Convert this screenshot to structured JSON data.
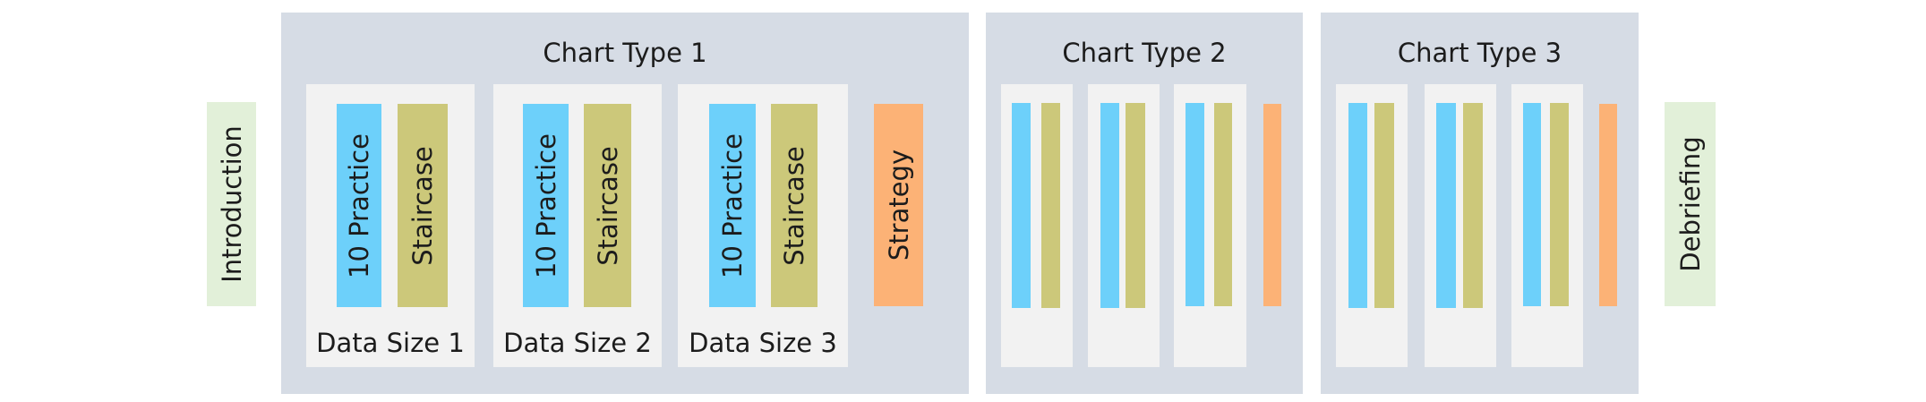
{
  "phases": {
    "introduction": "Introduction",
    "debriefing": "Debriefing"
  },
  "chart_types": [
    {
      "title": "Chart Type 1",
      "groups": [
        {
          "label": "Data Size 1",
          "practice": "10 Practice",
          "staircase": "Staircase"
        },
        {
          "label": "Data Size 2",
          "practice": "10 Practice",
          "staircase": "Staircase"
        },
        {
          "label": "Data Size 3",
          "practice": "10 Practice",
          "staircase": "Staircase"
        }
      ],
      "strategy": "Strategy"
    },
    {
      "title": "Chart Type 2"
    },
    {
      "title": "Chart Type 3"
    }
  ],
  "colors": {
    "panel": "#d6dce5",
    "group": "#f2f2f2",
    "practice": "#6dd0fa",
    "staircase": "#ccc87a",
    "strategy": "#fcb276",
    "phase": "#e2f0d9"
  }
}
